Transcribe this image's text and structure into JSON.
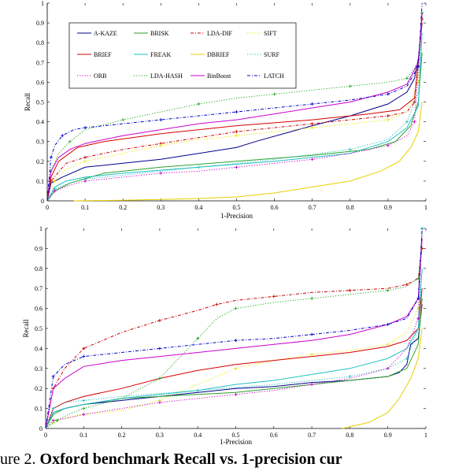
{
  "caption": {
    "prefix": "ure 2.",
    "bold": "Oxford benchmark Recall vs.  1-precision cur"
  },
  "colors": {
    "A-KAZE": "#00008b",
    "BRISK": "#2ca02c",
    "LDA-DIF": "#cc0000",
    "SIFT": "#e8e800",
    "BRIEF": "#d40000",
    "FREAK": "#20c0c0",
    "DBRIEF": "#e8d000",
    "SURF": "#20c0c0",
    "ORB": "#cc00cc",
    "LDA-HASH": "#22aa22",
    "BinBoost": "#cc00cc",
    "LATCH": "#0000cc"
  },
  "chart_data": [
    {
      "type": "line",
      "xlabel": "1-Precision",
      "ylabel": "Recall",
      "xlim": [
        0,
        1
      ],
      "ylim": [
        0,
        1
      ],
      "xticks": [
        "0",
        "0.1",
        "0.2",
        "0.3",
        "0.4",
        "0.5",
        "0.6",
        "0.7",
        "0.8",
        "0.9",
        "1"
      ],
      "yticks": [
        "0",
        "0.1",
        "0.2",
        "0.3",
        "0.4",
        "0.5",
        "0.6",
        "0.7",
        "0.8",
        "0.9",
        "1"
      ],
      "legend": [
        "A-KAZE",
        "BRISK",
        "LDA-DIF",
        "SIFT",
        "BRIEF",
        "FREAK",
        "DBRIEF",
        "SURF",
        "ORB",
        "LDA-HASH",
        "BinBoost",
        "LATCH"
      ],
      "legend_position": "top-left",
      "series": [
        {
          "name": "A-KAZE",
          "style": "solid",
          "x": [
            0,
            0.01,
            0.04,
            0.1,
            0.2,
            0.3,
            0.4,
            0.5,
            0.55,
            0.7,
            0.8,
            0.9,
            0.95,
            0.97,
            0.98,
            0.99
          ],
          "y": [
            0,
            0.09,
            0.12,
            0.17,
            0.19,
            0.21,
            0.24,
            0.27,
            0.3,
            0.38,
            0.43,
            0.49,
            0.55,
            0.62,
            0.72,
            0.9
          ]
        },
        {
          "name": "BRISK",
          "style": "solid",
          "x": [
            0,
            0.02,
            0.06,
            0.15,
            0.3,
            0.5,
            0.7,
            0.85,
            0.92,
            0.96,
            0.98,
            0.99
          ],
          "y": [
            0,
            0.05,
            0.09,
            0.14,
            0.17,
            0.2,
            0.23,
            0.26,
            0.3,
            0.38,
            0.5,
            0.75
          ]
        },
        {
          "name": "LDA-DIF",
          "style": "dashdot",
          "x": [
            0,
            0.01,
            0.05,
            0.1,
            0.2,
            0.3,
            0.4,
            0.5,
            0.6,
            0.7,
            0.8,
            0.9,
            0.95,
            0.97,
            0.98,
            0.99
          ],
          "y": [
            0,
            0.1,
            0.19,
            0.22,
            0.26,
            0.29,
            0.32,
            0.35,
            0.37,
            0.39,
            0.41,
            0.43,
            0.45,
            0.5,
            0.7,
            0.92
          ]
        },
        {
          "name": "SIFT",
          "style": "dotted",
          "x": [
            0,
            0.02,
            0.05,
            0.1,
            0.2,
            0.3,
            0.4,
            0.5,
            0.6,
            0.7,
            0.8,
            0.9,
            0.95,
            0.98,
            0.99
          ],
          "y": [
            0,
            0.1,
            0.16,
            0.2,
            0.24,
            0.28,
            0.31,
            0.33,
            0.35,
            0.37,
            0.39,
            0.41,
            0.45,
            0.6,
            0.95
          ]
        },
        {
          "name": "BRIEF",
          "style": "solid",
          "x": [
            0,
            0.01,
            0.03,
            0.08,
            0.15,
            0.3,
            0.5,
            0.7,
            0.85,
            0.93,
            0.97,
            0.99
          ],
          "y": [
            0,
            0.12,
            0.2,
            0.27,
            0.3,
            0.34,
            0.38,
            0.41,
            0.44,
            0.46,
            0.52,
            0.9
          ]
        },
        {
          "name": "FREAK",
          "style": "solid",
          "x": [
            0,
            0.02,
            0.05,
            0.1,
            0.2,
            0.4,
            0.6,
            0.8,
            0.9,
            0.95,
            0.98,
            0.99
          ],
          "y": [
            0,
            0.07,
            0.1,
            0.12,
            0.14,
            0.17,
            0.2,
            0.24,
            0.3,
            0.37,
            0.48,
            0.85
          ]
        },
        {
          "name": "DBRIEF",
          "style": "solid",
          "x": [
            0.07,
            0.2,
            0.3,
            0.4,
            0.5,
            0.6,
            0.7,
            0.8,
            0.88,
            0.93,
            0.96,
            0.98,
            0.99
          ],
          "y": [
            0,
            0.003,
            0.007,
            0.012,
            0.02,
            0.04,
            0.07,
            0.1,
            0.15,
            0.2,
            0.27,
            0.35,
            0.5
          ]
        },
        {
          "name": "SURF",
          "style": "dotted",
          "x": [
            0,
            0.02,
            0.06,
            0.1,
            0.2,
            0.4,
            0.6,
            0.8,
            0.9,
            0.95,
            0.98,
            0.99
          ],
          "y": [
            0,
            0.06,
            0.09,
            0.11,
            0.13,
            0.17,
            0.21,
            0.26,
            0.31,
            0.4,
            0.55,
            0.95
          ]
        },
        {
          "name": "ORB",
          "style": "dotted",
          "x": [
            0,
            0.02,
            0.06,
            0.1,
            0.2,
            0.3,
            0.4,
            0.5,
            0.6,
            0.7,
            0.8,
            0.9,
            0.95,
            0.97,
            0.99
          ],
          "y": [
            0,
            0.05,
            0.08,
            0.1,
            0.12,
            0.14,
            0.15,
            0.17,
            0.19,
            0.21,
            0.24,
            0.28,
            0.33,
            0.4,
            0.95
          ]
        },
        {
          "name": "LDA-HASH",
          "style": "dotted",
          "x": [
            0,
            0.01,
            0.03,
            0.06,
            0.1,
            0.2,
            0.3,
            0.4,
            0.5,
            0.6,
            0.7,
            0.8,
            0.9,
            0.95,
            0.98,
            0.99
          ],
          "y": [
            0,
            0.15,
            0.24,
            0.3,
            0.36,
            0.41,
            0.45,
            0.49,
            0.52,
            0.54,
            0.56,
            0.58,
            0.6,
            0.62,
            0.7,
            0.95
          ]
        },
        {
          "name": "BinBoost",
          "style": "solid",
          "x": [
            0,
            0.01,
            0.03,
            0.06,
            0.1,
            0.2,
            0.3,
            0.4,
            0.5,
            0.6,
            0.7,
            0.8,
            0.9,
            0.95,
            0.98,
            0.99
          ],
          "y": [
            0,
            0.15,
            0.22,
            0.26,
            0.29,
            0.33,
            0.36,
            0.39,
            0.41,
            0.44,
            0.47,
            0.5,
            0.55,
            0.59,
            0.7,
            0.95
          ]
        },
        {
          "name": "LATCH",
          "style": "dashdot",
          "x": [
            0,
            0.01,
            0.02,
            0.04,
            0.07,
            0.1,
            0.2,
            0.3,
            0.4,
            0.5,
            0.6,
            0.7,
            0.8,
            0.9,
            0.95,
            0.98,
            0.99
          ],
          "y": [
            0,
            0.22,
            0.28,
            0.33,
            0.36,
            0.37,
            0.39,
            0.41,
            0.43,
            0.45,
            0.47,
            0.49,
            0.51,
            0.54,
            0.58,
            0.68,
            1.0
          ]
        }
      ]
    },
    {
      "type": "line",
      "xlabel": "1-Precision",
      "ylabel": "Recall",
      "xlim": [
        0,
        1
      ],
      "ylim": [
        0,
        1
      ],
      "xticks": [
        "0",
        "0.1",
        "0.2",
        "0.3",
        "0.4",
        "0.5",
        "0.6",
        "0.7",
        "0.8",
        "0.9",
        "1"
      ],
      "yticks": [
        "0",
        "0.1",
        "0.2",
        "0.3",
        "0.4",
        "0.5",
        "0.6",
        "0.7",
        "0.8",
        "0.9",
        "1"
      ],
      "series": [
        {
          "name": "A-KAZE",
          "style": "solid",
          "x": [
            0,
            0.02,
            0.05,
            0.1,
            0.2,
            0.3,
            0.4,
            0.5,
            0.6,
            0.7,
            0.8,
            0.9,
            0.93,
            0.95,
            0.96,
            0.98,
            0.99
          ],
          "y": [
            0,
            0.08,
            0.1,
            0.12,
            0.14,
            0.16,
            0.18,
            0.2,
            0.21,
            0.23,
            0.24,
            0.26,
            0.28,
            0.32,
            0.42,
            0.45,
            0.62
          ]
        },
        {
          "name": "BRISK",
          "style": "solid",
          "x": [
            0,
            0.02,
            0.05,
            0.1,
            0.2,
            0.3,
            0.4,
            0.5,
            0.6,
            0.7,
            0.8,
            0.9,
            0.95,
            0.98,
            0.99
          ],
          "y": [
            0,
            0.07,
            0.1,
            0.12,
            0.15,
            0.16,
            0.17,
            0.18,
            0.2,
            0.22,
            0.24,
            0.26,
            0.3,
            0.42,
            0.65
          ]
        },
        {
          "name": "LDA-DIF",
          "style": "dashdot",
          "x": [
            0,
            0.02,
            0.05,
            0.1,
            0.2,
            0.3,
            0.4,
            0.45,
            0.5,
            0.6,
            0.7,
            0.8,
            0.9,
            0.95,
            0.98,
            0.99
          ],
          "y": [
            0,
            0.2,
            0.3,
            0.4,
            0.48,
            0.54,
            0.59,
            0.62,
            0.64,
            0.66,
            0.68,
            0.69,
            0.7,
            0.72,
            0.75,
            0.9
          ]
        },
        {
          "name": "SIFT",
          "style": "dotted",
          "x": [
            0,
            0.02,
            0.05,
            0.1,
            0.2,
            0.3,
            0.4,
            0.5,
            0.6,
            0.7,
            0.8,
            0.9,
            0.95,
            0.98,
            0.99
          ],
          "y": [
            0,
            0.03,
            0.05,
            0.07,
            0.09,
            0.14,
            0.22,
            0.3,
            0.34,
            0.37,
            0.39,
            0.42,
            0.48,
            0.6,
            0.95
          ]
        },
        {
          "name": "BRIEF",
          "style": "solid",
          "x": [
            0,
            0.02,
            0.05,
            0.1,
            0.2,
            0.3,
            0.4,
            0.5,
            0.6,
            0.7,
            0.8,
            0.9,
            0.95,
            0.98,
            0.99
          ],
          "y": [
            0,
            0.1,
            0.13,
            0.16,
            0.2,
            0.25,
            0.29,
            0.32,
            0.34,
            0.36,
            0.38,
            0.41,
            0.44,
            0.5,
            0.7
          ]
        },
        {
          "name": "FREAK",
          "style": "solid",
          "x": [
            0,
            0.02,
            0.05,
            0.1,
            0.2,
            0.3,
            0.4,
            0.5,
            0.6,
            0.7,
            0.8,
            0.9,
            0.95,
            0.98,
            0.99
          ],
          "y": [
            0,
            0.08,
            0.1,
            0.12,
            0.15,
            0.17,
            0.19,
            0.22,
            0.24,
            0.27,
            0.3,
            0.35,
            0.4,
            0.5,
            0.8
          ]
        },
        {
          "name": "DBRIEF",
          "style": "solid",
          "x": [
            0.78,
            0.85,
            0.9,
            0.93,
            0.96,
            0.98,
            0.99
          ],
          "y": [
            0,
            0.03,
            0.08,
            0.15,
            0.25,
            0.35,
            0.5
          ]
        },
        {
          "name": "SURF",
          "style": "dotted",
          "x": [
            0,
            0.02,
            0.05,
            0.1,
            0.2,
            0.4,
            0.6,
            0.8,
            0.9,
            0.95,
            0.98,
            0.99
          ],
          "y": [
            0,
            0.1,
            0.13,
            0.14,
            0.16,
            0.19,
            0.22,
            0.26,
            0.3,
            0.35,
            0.5,
            1.0
          ]
        },
        {
          "name": "ORB",
          "style": "dotted",
          "x": [
            0,
            0.02,
            0.05,
            0.1,
            0.2,
            0.3,
            0.4,
            0.5,
            0.6,
            0.7,
            0.8,
            0.9,
            0.95,
            0.98,
            0.99
          ],
          "y": [
            0,
            0.04,
            0.05,
            0.07,
            0.1,
            0.13,
            0.15,
            0.17,
            0.19,
            0.22,
            0.25,
            0.3,
            0.4,
            0.55,
            1.0
          ]
        },
        {
          "name": "LDA-HASH",
          "style": "dotted",
          "x": [
            0,
            0.03,
            0.06,
            0.1,
            0.2,
            0.3,
            0.35,
            0.4,
            0.45,
            0.5,
            0.6,
            0.7,
            0.8,
            0.9,
            0.95,
            0.98,
            0.99
          ],
          "y": [
            0,
            0.04,
            0.07,
            0.1,
            0.15,
            0.25,
            0.35,
            0.45,
            0.55,
            0.6,
            0.63,
            0.65,
            0.67,
            0.69,
            0.71,
            0.75,
            0.95
          ]
        },
        {
          "name": "BinBoost",
          "style": "solid",
          "x": [
            0,
            0.02,
            0.05,
            0.1,
            0.2,
            0.3,
            0.4,
            0.5,
            0.6,
            0.7,
            0.8,
            0.9,
            0.95,
            0.98,
            0.99
          ],
          "y": [
            0,
            0.2,
            0.25,
            0.31,
            0.34,
            0.36,
            0.38,
            0.4,
            0.42,
            0.44,
            0.47,
            0.52,
            0.56,
            0.65,
            0.95
          ]
        },
        {
          "name": "LATCH",
          "style": "dashdot",
          "x": [
            0,
            0.02,
            0.05,
            0.1,
            0.2,
            0.3,
            0.4,
            0.5,
            0.6,
            0.7,
            0.8,
            0.9,
            0.95,
            0.98,
            0.99
          ],
          "y": [
            0,
            0.26,
            0.32,
            0.36,
            0.38,
            0.4,
            0.42,
            0.44,
            0.45,
            0.47,
            0.49,
            0.52,
            0.55,
            0.65,
            1.0
          ]
        }
      ]
    }
  ]
}
